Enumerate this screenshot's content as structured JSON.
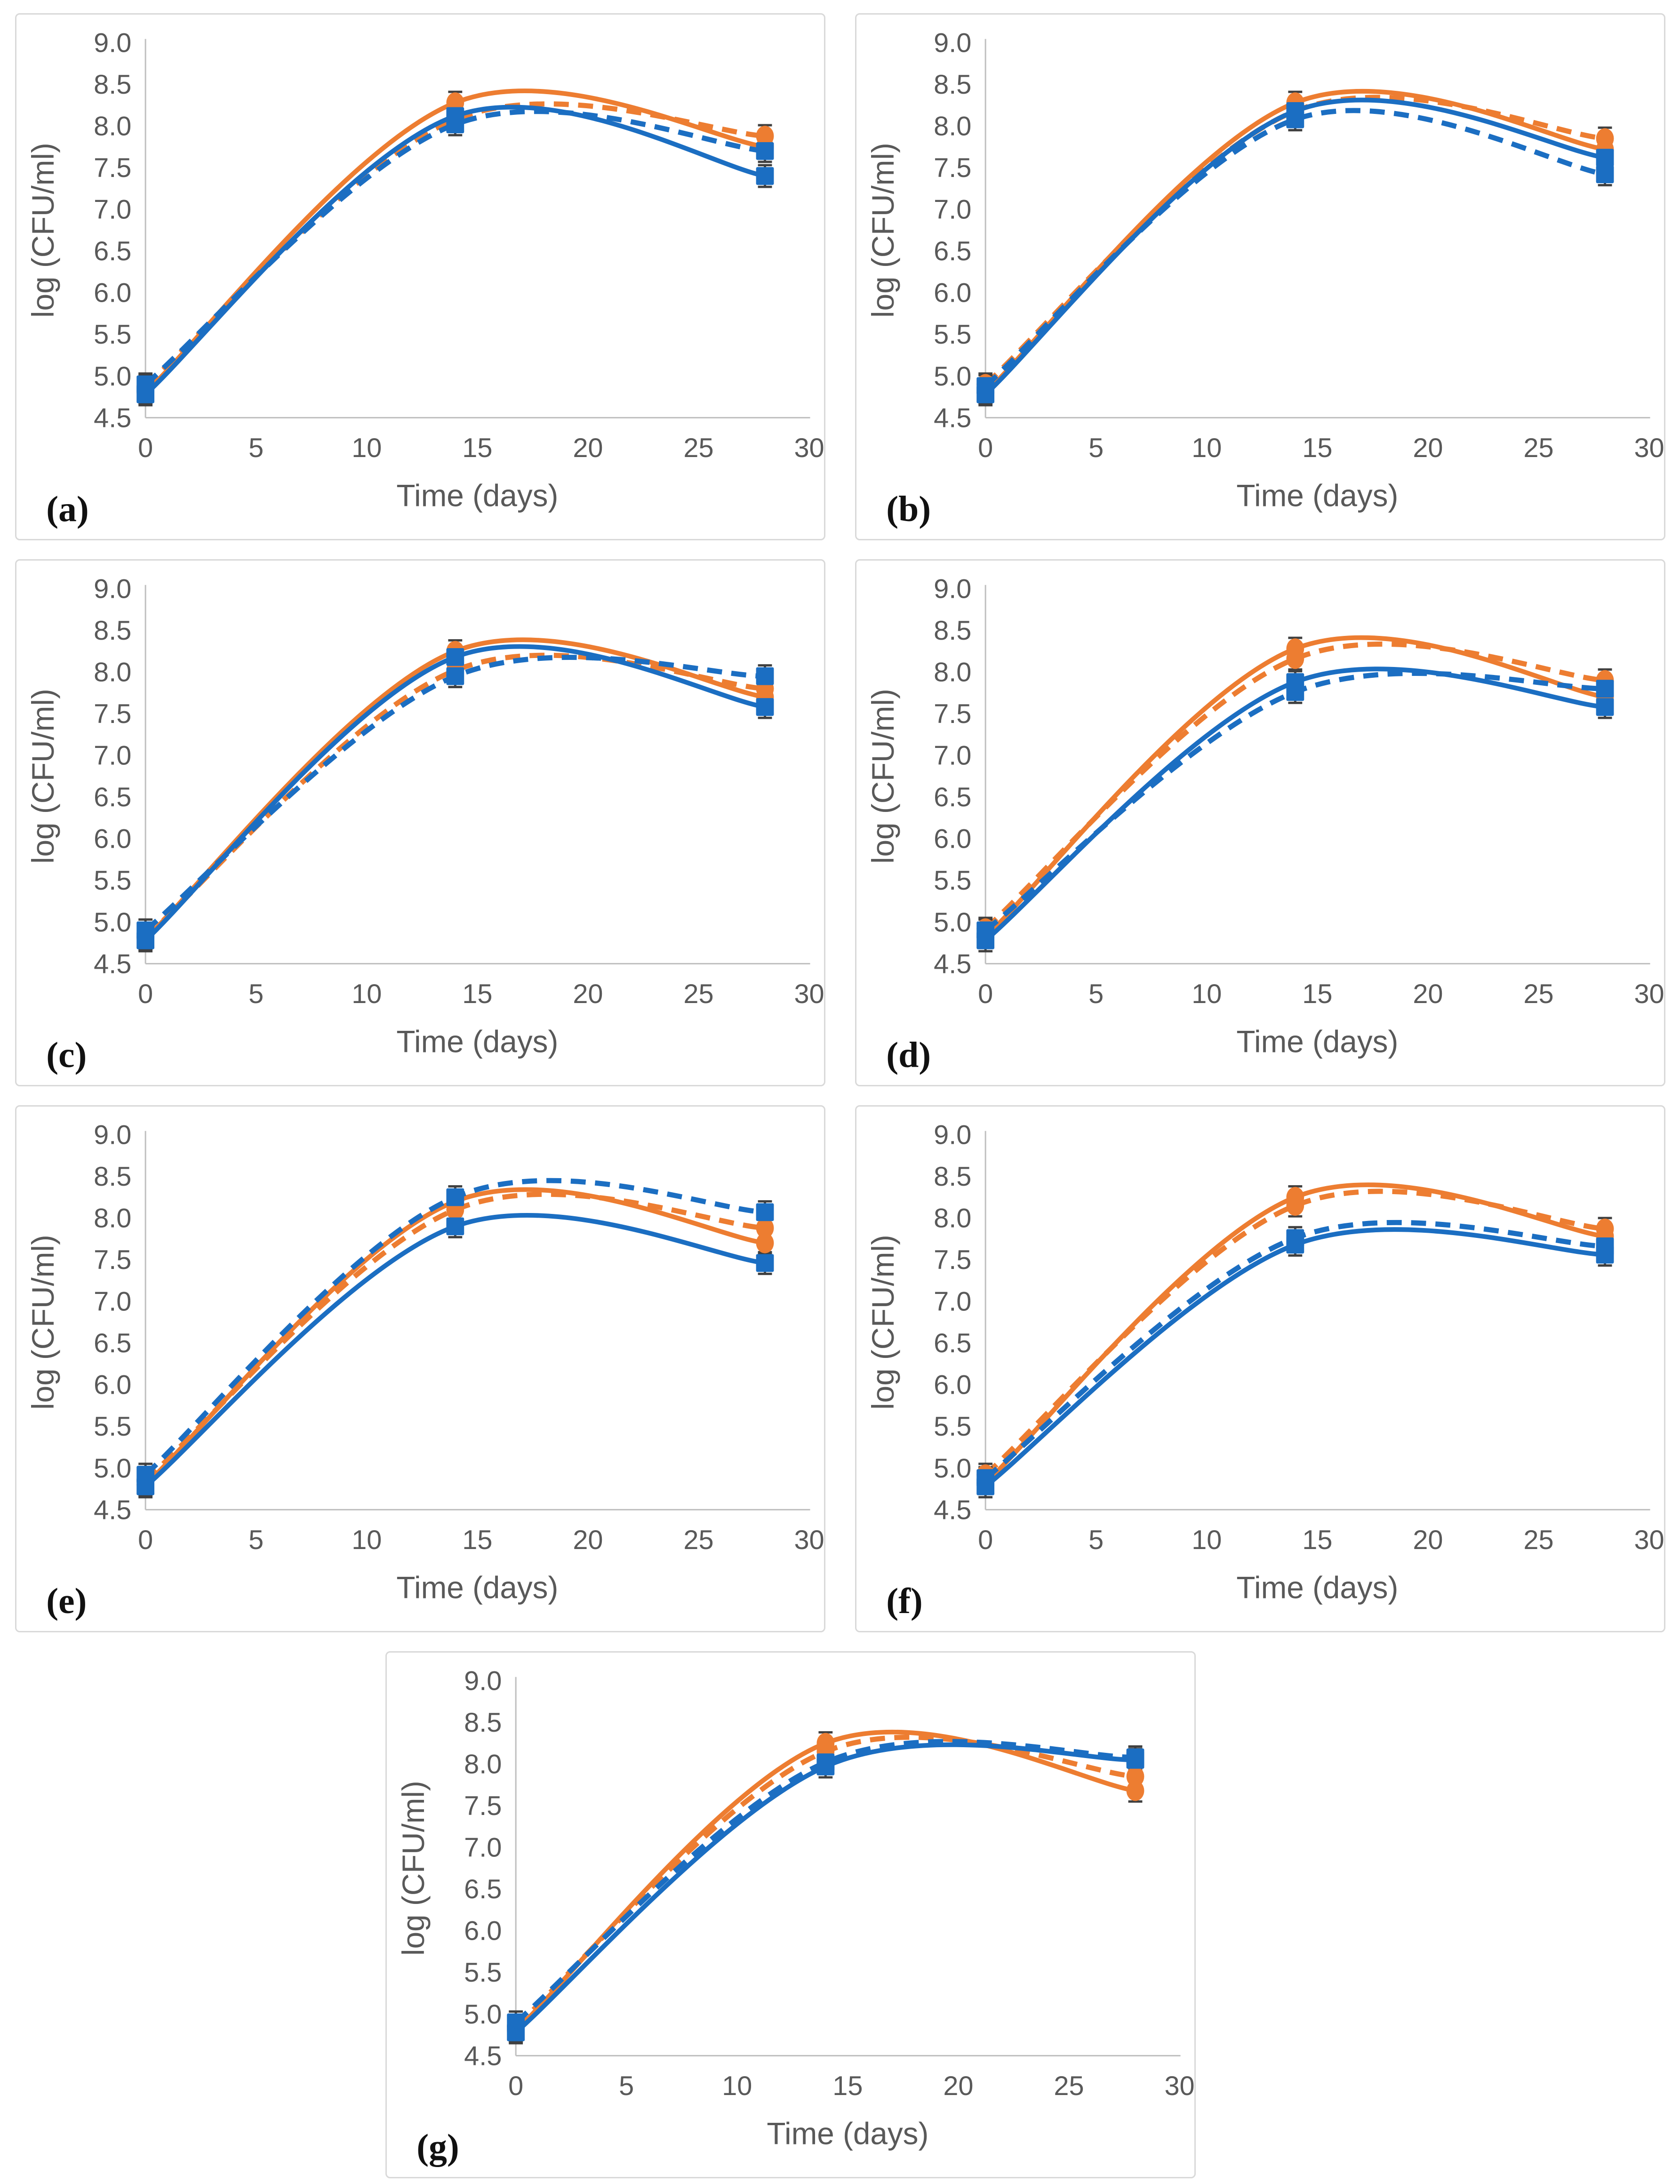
{
  "palette": {
    "orange": "#ED7D31",
    "blue": "#1B6EC2",
    "axis_line": "#BFBFBF",
    "tick_text": "#595959",
    "axis_title_text": "#595959",
    "error_bar": "#404040",
    "panel_border": "#D9D9D9"
  },
  "chart_data": [
    {
      "id": "a",
      "panel_label": "(a)",
      "type": "line",
      "smooth": true,
      "grid": false,
      "legend": false,
      "xlabel": "Time (days)",
      "ylabel": "log (CFU/ml)",
      "xlim": [
        0,
        30
      ],
      "ylim": [
        4.5,
        9.0
      ],
      "x_ticks": [
        0,
        5,
        10,
        15,
        20,
        25,
        30
      ],
      "y_tick_labels": [
        "4.5",
        "5.0",
        "5.5",
        "6.0",
        "6.5",
        "7.0",
        "7.5",
        "8.0",
        "8.5",
        "9.0"
      ],
      "x": [
        0,
        14,
        28
      ],
      "error_bar": 0.13,
      "series": [
        {
          "name": "orange dashed (circle markers)",
          "color": "#ED7D31",
          "line": "dashed",
          "marker": "circle",
          "y": [
            4.88,
            8.08,
            7.88
          ]
        },
        {
          "name": "orange solid (circle markers)",
          "color": "#ED7D31",
          "line": "solid",
          "marker": "circle",
          "y": [
            4.8,
            8.28,
            7.75
          ]
        },
        {
          "name": "blue dashed (square markers)",
          "color": "#1B6EC2",
          "line": "dashed",
          "marker": "square",
          "y": [
            4.9,
            8.02,
            7.7
          ]
        },
        {
          "name": "blue solid (square markers)",
          "color": "#1B6EC2",
          "line": "solid",
          "marker": "square",
          "y": [
            4.78,
            8.12,
            7.4
          ]
        }
      ]
    },
    {
      "id": "b",
      "panel_label": "(b)",
      "type": "line",
      "smooth": true,
      "grid": false,
      "legend": false,
      "xlabel": "Time (days)",
      "ylabel": "log (CFU/ml)",
      "xlim": [
        0,
        30
      ],
      "ylim": [
        4.5,
        9.0
      ],
      "x_ticks": [
        0,
        5,
        10,
        15,
        20,
        25,
        30
      ],
      "y_tick_labels": [
        "4.5",
        "5.0",
        "5.5",
        "6.0",
        "6.5",
        "7.0",
        "7.5",
        "8.0",
        "8.5",
        "9.0"
      ],
      "x": [
        0,
        14,
        28
      ],
      "error_bar": 0.13,
      "series": [
        {
          "name": "orange dashed (circle markers)",
          "color": "#ED7D31",
          "line": "dashed",
          "marker": "circle",
          "y": [
            4.9,
            8.18,
            7.85
          ]
        },
        {
          "name": "orange solid (circle markers)",
          "color": "#ED7D31",
          "line": "solid",
          "marker": "circle",
          "y": [
            4.8,
            8.28,
            7.72
          ]
        },
        {
          "name": "blue dashed (square markers)",
          "color": "#1B6EC2",
          "line": "dashed",
          "marker": "square",
          "y": [
            4.88,
            8.08,
            7.42
          ]
        },
        {
          "name": "blue solid (square markers)",
          "color": "#1B6EC2",
          "line": "solid",
          "marker": "square",
          "y": [
            4.78,
            8.18,
            7.62
          ]
        }
      ]
    },
    {
      "id": "c",
      "panel_label": "(c)",
      "type": "line",
      "smooth": true,
      "grid": false,
      "legend": false,
      "xlabel": "Time (days)",
      "ylabel": "log (CFU/ml)",
      "xlim": [
        0,
        30
      ],
      "ylim": [
        4.5,
        9.0
      ],
      "x_ticks": [
        0,
        5,
        10,
        15,
        20,
        25,
        30
      ],
      "y_tick_labels": [
        "4.5",
        "5.0",
        "5.5",
        "6.0",
        "6.5",
        "7.0",
        "7.5",
        "8.0",
        "8.5",
        "9.0"
      ],
      "x": [
        0,
        14,
        28
      ],
      "error_bar": 0.13,
      "series": [
        {
          "name": "orange dashed (circle markers)",
          "color": "#ED7D31",
          "line": "dashed",
          "marker": "circle",
          "y": [
            4.82,
            8.02,
            7.8
          ]
        },
        {
          "name": "orange solid (circle markers)",
          "color": "#ED7D31",
          "line": "solid",
          "marker": "circle",
          "y": [
            4.8,
            8.25,
            7.7
          ]
        },
        {
          "name": "blue dashed (square markers)",
          "color": "#1B6EC2",
          "line": "dashed",
          "marker": "square",
          "y": [
            4.9,
            7.95,
            7.95
          ]
        },
        {
          "name": "blue solid (square markers)",
          "color": "#1B6EC2",
          "line": "solid",
          "marker": "square",
          "y": [
            4.78,
            8.18,
            7.58
          ]
        }
      ]
    },
    {
      "id": "d",
      "panel_label": "(d)",
      "type": "line",
      "smooth": true,
      "grid": false,
      "legend": false,
      "xlabel": "Time (days)",
      "ylabel": "log (CFU/ml)",
      "xlim": [
        0,
        30
      ],
      "ylim": [
        4.5,
        9.0
      ],
      "x_ticks": [
        0,
        5,
        10,
        15,
        20,
        25,
        30
      ],
      "y_tick_labels": [
        "4.5",
        "5.0",
        "5.5",
        "6.0",
        "6.5",
        "7.0",
        "7.5",
        "8.0",
        "8.5",
        "9.0"
      ],
      "x": [
        0,
        14,
        28
      ],
      "error_bar": 0.13,
      "series": [
        {
          "name": "orange dashed (circle markers)",
          "color": "#ED7D31",
          "line": "dashed",
          "marker": "circle",
          "y": [
            4.92,
            8.16,
            7.9
          ]
        },
        {
          "name": "orange solid (circle markers)",
          "color": "#ED7D31",
          "line": "solid",
          "marker": "circle",
          "y": [
            4.82,
            8.28,
            7.7
          ]
        },
        {
          "name": "blue dashed (square markers)",
          "color": "#1B6EC2",
          "line": "dashed",
          "marker": "square",
          "y": [
            4.9,
            7.76,
            7.8
          ]
        },
        {
          "name": "blue solid (square markers)",
          "color": "#1B6EC2",
          "line": "solid",
          "marker": "square",
          "y": [
            4.78,
            7.88,
            7.58
          ]
        }
      ]
    },
    {
      "id": "e",
      "panel_label": "(e)",
      "type": "line",
      "smooth": true,
      "grid": false,
      "legend": false,
      "xlabel": "Time (days)",
      "ylabel": "log (CFU/ml)",
      "xlim": [
        0,
        30
      ],
      "ylim": [
        4.5,
        9.0
      ],
      "x_ticks": [
        0,
        5,
        10,
        15,
        20,
        25,
        30
      ],
      "y_tick_labels": [
        "4.5",
        "5.0",
        "5.5",
        "6.0",
        "6.5",
        "7.0",
        "7.5",
        "8.0",
        "8.5",
        "9.0"
      ],
      "x": [
        0,
        14,
        28
      ],
      "error_bar": 0.13,
      "series": [
        {
          "name": "orange dashed (circle markers)",
          "color": "#ED7D31",
          "line": "dashed",
          "marker": "circle",
          "y": [
            4.85,
            8.1,
            7.88
          ]
        },
        {
          "name": "orange solid (circle markers)",
          "color": "#ED7D31",
          "line": "solid",
          "marker": "circle",
          "y": [
            4.8,
            8.2,
            7.7
          ]
        },
        {
          "name": "blue dashed (square markers)",
          "color": "#1B6EC2",
          "line": "dashed",
          "marker": "square",
          "y": [
            4.92,
            8.25,
            8.07
          ]
        },
        {
          "name": "blue solid (square markers)",
          "color": "#1B6EC2",
          "line": "solid",
          "marker": "square",
          "y": [
            4.78,
            7.9,
            7.46
          ]
        }
      ]
    },
    {
      "id": "f",
      "panel_label": "(f)",
      "type": "line",
      "smooth": true,
      "grid": false,
      "legend": false,
      "xlabel": "Time (days)",
      "ylabel": "log (CFU/ml)",
      "xlim": [
        0,
        30
      ],
      "ylim": [
        4.5,
        9.0
      ],
      "x_ticks": [
        0,
        5,
        10,
        15,
        20,
        25,
        30
      ],
      "y_tick_labels": [
        "4.5",
        "5.0",
        "5.5",
        "6.0",
        "6.5",
        "7.0",
        "7.5",
        "8.0",
        "8.5",
        "9.0"
      ],
      "x": [
        0,
        14,
        28
      ],
      "error_bar": 0.13,
      "series": [
        {
          "name": "orange dashed (circle markers)",
          "color": "#ED7D31",
          "line": "dashed",
          "marker": "circle",
          "y": [
            4.92,
            8.15,
            7.87
          ]
        },
        {
          "name": "orange solid (circle markers)",
          "color": "#ED7D31",
          "line": "solid",
          "marker": "circle",
          "y": [
            4.82,
            8.25,
            7.78
          ]
        },
        {
          "name": "blue dashed (square markers)",
          "color": "#1B6EC2",
          "line": "dashed",
          "marker": "square",
          "y": [
            4.88,
            7.76,
            7.66
          ]
        },
        {
          "name": "blue solid (square markers)",
          "color": "#1B6EC2",
          "line": "solid",
          "marker": "square",
          "y": [
            4.78,
            7.68,
            7.56
          ]
        }
      ]
    },
    {
      "id": "g",
      "panel_label": "(g)",
      "type": "line",
      "smooth": true,
      "grid": false,
      "legend": false,
      "xlabel": "Time (days)",
      "ylabel": "log (CFU/ml)",
      "xlim": [
        0,
        30
      ],
      "ylim": [
        4.5,
        9.0
      ],
      "x_ticks": [
        0,
        5,
        10,
        15,
        20,
        25,
        30
      ],
      "y_tick_labels": [
        "4.5",
        "5.0",
        "5.5",
        "6.0",
        "6.5",
        "7.0",
        "7.5",
        "8.0",
        "8.5",
        "9.0"
      ],
      "x": [
        0,
        14,
        28
      ],
      "error_bar": 0.13,
      "series": [
        {
          "name": "orange dashed (circle markers)",
          "color": "#ED7D31",
          "line": "dashed",
          "marker": "circle",
          "y": [
            4.85,
            8.15,
            7.85
          ]
        },
        {
          "name": "orange solid (circle markers)",
          "color": "#ED7D31",
          "line": "solid",
          "marker": "circle",
          "y": [
            4.8,
            8.25,
            7.68
          ]
        },
        {
          "name": "blue dashed (square markers)",
          "color": "#1B6EC2",
          "line": "dashed",
          "marker": "square",
          "y": [
            4.9,
            8.02,
            8.08
          ]
        },
        {
          "name": "blue solid (square markers)",
          "color": "#1B6EC2",
          "line": "solid",
          "marker": "square",
          "y": [
            4.78,
            7.97,
            8.05
          ]
        }
      ]
    }
  ]
}
